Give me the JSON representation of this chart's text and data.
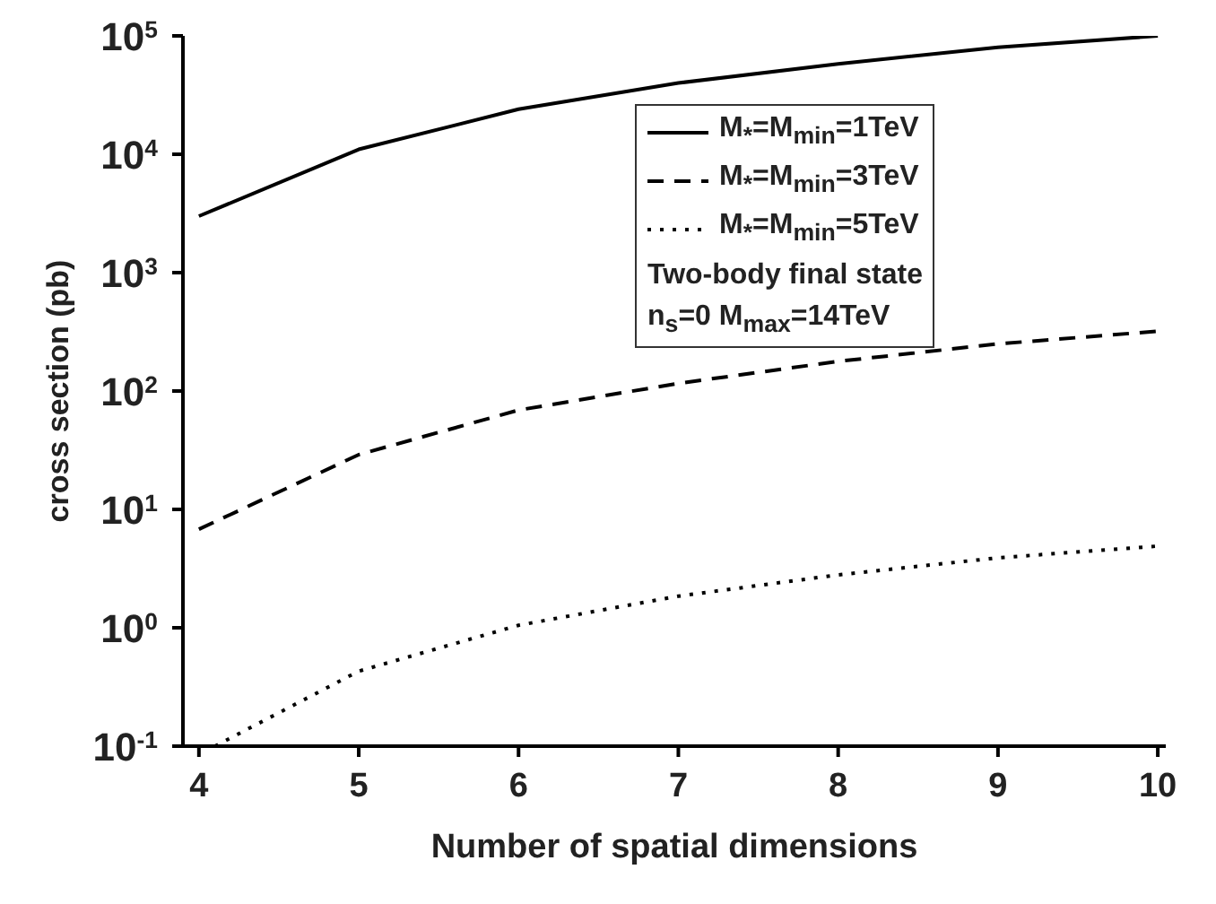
{
  "chart_data": {
    "type": "line",
    "xlabel": "Number of spatial dimensions",
    "ylabel": "cross section (pb)",
    "x": [
      4,
      5,
      6,
      7,
      8,
      9,
      10
    ],
    "series": [
      {
        "name": "M$_{*}$=M$_{min}$=1TeV",
        "color": "#000000",
        "line_style": "solid",
        "values": [
          3000,
          11000,
          24000,
          40000,
          58000,
          80000,
          100000
        ]
      },
      {
        "name": "M$_{*}$=M$_{min}$=3TeV",
        "color": "#000000",
        "line_style": "dashed",
        "values": [
          6.8,
          29,
          69,
          116,
          178,
          250,
          320
        ]
      },
      {
        "name": "M$_{*}$=M$_{min}$=5TeV",
        "color": "#000000",
        "line_style": "dotted",
        "x": [
          4.1,
          5,
          6,
          7,
          8,
          9,
          10
        ],
        "values": [
          0.1,
          0.43,
          1.05,
          1.85,
          2.8,
          3.9,
          4.9
        ]
      }
    ],
    "xlim": [
      3.9,
      10.05
    ],
    "xticks": [
      4,
      5,
      6,
      7,
      8,
      9,
      10
    ],
    "ylim": [
      0.1,
      100000
    ],
    "log": "y",
    "yticks": [
      {
        "value": 0.1,
        "label": "10$^{-1}$"
      },
      {
        "value": 1,
        "label": "10$^{0}$"
      },
      {
        "value": 10,
        "label": "10$^{1}$"
      },
      {
        "value": 100,
        "label": "10$^{2}$"
      },
      {
        "value": 1000,
        "label": "10$^{3}$"
      },
      {
        "value": 10000,
        "label": "10$^{4}$"
      },
      {
        "value": 100000,
        "label": "10$^{5}$"
      }
    ],
    "grid": false,
    "marker": "none",
    "legend": "top right",
    "annotations": [
      "Two-body final state",
      "n$_{s}$=0  M$_{max}$=14TeV"
    ]
  }
}
